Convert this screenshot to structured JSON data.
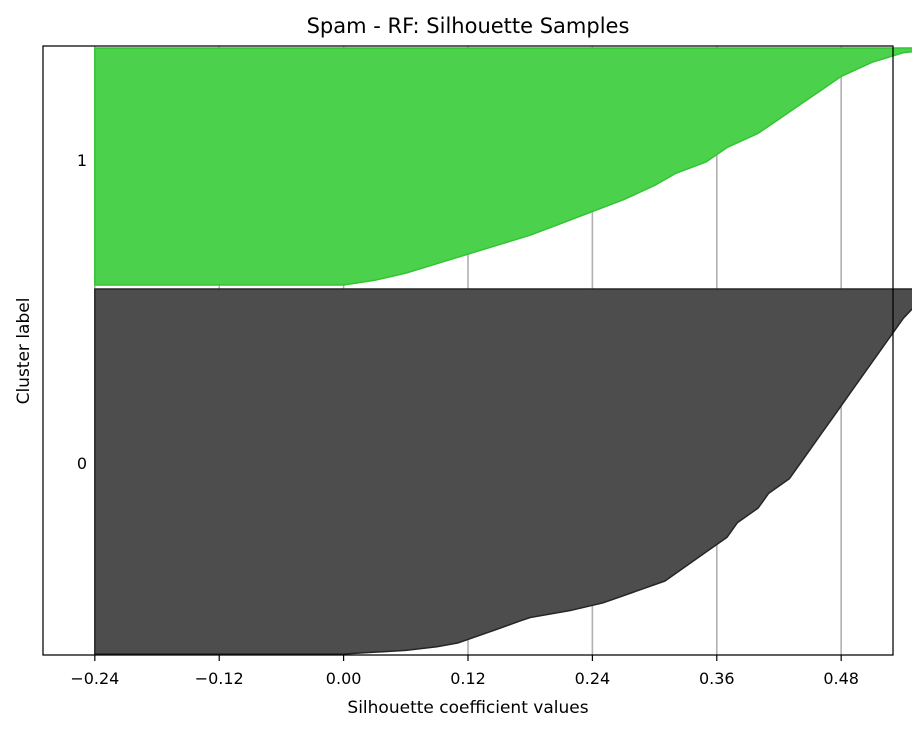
{
  "chart_data": {
    "type": "area",
    "title": "Spam - RF: Silhouette Samples",
    "xlabel": "Silhouette coefficient values",
    "ylabel": "Cluster label",
    "xlim": [
      -0.29,
      0.53
    ],
    "x_ticks": [
      -0.24,
      -0.12,
      0.0,
      0.12,
      0.24,
      0.36,
      0.48
    ],
    "x_tick_labels": [
      "−0.24",
      "−0.12",
      "0.00",
      "0.12",
      "0.24",
      "0.36",
      "0.48"
    ],
    "grid": "x-axis only",
    "legend": "none",
    "series": [
      {
        "cluster_label": "0",
        "color": "#4d4d4d",
        "edge_color": "#262626",
        "baseline": -0.24,
        "profile": [
          [
            0.0,
            0.0
          ],
          [
            0.01,
            0.06
          ],
          [
            0.02,
            0.09
          ],
          [
            0.03,
            0.11
          ],
          [
            0.05,
            0.13
          ],
          [
            0.07,
            0.15
          ],
          [
            0.09,
            0.17
          ],
          [
            0.1,
            0.18
          ],
          [
            0.12,
            0.22
          ],
          [
            0.14,
            0.25
          ],
          [
            0.17,
            0.28
          ],
          [
            0.2,
            0.31
          ],
          [
            0.24,
            0.33
          ],
          [
            0.28,
            0.35
          ],
          [
            0.32,
            0.37
          ],
          [
            0.36,
            0.38
          ],
          [
            0.4,
            0.4
          ],
          [
            0.44,
            0.41
          ],
          [
            0.48,
            0.43
          ],
          [
            0.52,
            0.44
          ],
          [
            0.56,
            0.45
          ],
          [
            0.6,
            0.46
          ],
          [
            0.64,
            0.47
          ],
          [
            0.68,
            0.48
          ],
          [
            0.72,
            0.49
          ],
          [
            0.76,
            0.5
          ],
          [
            0.8,
            0.51
          ],
          [
            0.84,
            0.52
          ],
          [
            0.88,
            0.53
          ],
          [
            0.92,
            0.54
          ],
          [
            0.95,
            0.55
          ],
          [
            0.98,
            0.56
          ],
          [
            0.995,
            0.57
          ],
          [
            1.0,
            0.6
          ]
        ]
      },
      {
        "cluster_label": "1",
        "color": "#4cd14c",
        "edge_color": "#33c433",
        "baseline": -0.24,
        "profile": [
          [
            0.0,
            0.0
          ],
          [
            0.02,
            0.03
          ],
          [
            0.05,
            0.06
          ],
          [
            0.09,
            0.09
          ],
          [
            0.13,
            0.12
          ],
          [
            0.17,
            0.15
          ],
          [
            0.21,
            0.18
          ],
          [
            0.26,
            0.21
          ],
          [
            0.31,
            0.24
          ],
          [
            0.36,
            0.27
          ],
          [
            0.42,
            0.3
          ],
          [
            0.47,
            0.32
          ],
          [
            0.52,
            0.35
          ],
          [
            0.58,
            0.37
          ],
          [
            0.64,
            0.4
          ],
          [
            0.7,
            0.42
          ],
          [
            0.76,
            0.44
          ],
          [
            0.82,
            0.46
          ],
          [
            0.88,
            0.48
          ],
          [
            0.94,
            0.51
          ],
          [
            0.98,
            0.54
          ],
          [
            1.0,
            0.58
          ]
        ]
      }
    ]
  }
}
